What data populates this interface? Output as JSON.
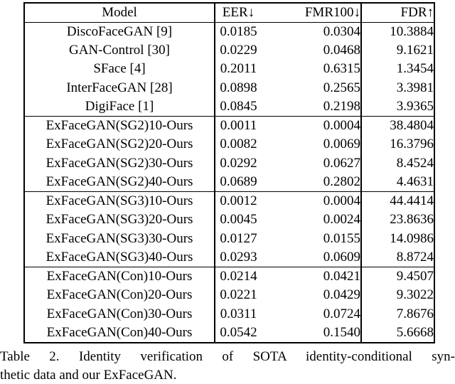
{
  "table": {
    "headers": {
      "model": "Model",
      "eer": "EER↓",
      "fmr100": "FMR100↓",
      "fdr": "FDR↑"
    },
    "rows": [
      {
        "model": "DiscoFaceGAN [9]",
        "eer": "0.0185",
        "fmr100": "0.0304",
        "fdr": "10.3884"
      },
      {
        "model": "GAN-Control [30]",
        "eer": "0.0229",
        "fmr100": "0.0468",
        "fdr": "9.1621"
      },
      {
        "model": "SFace [4]",
        "eer": "0.2011",
        "fmr100": "0.6315",
        "fdr": "1.3454"
      },
      {
        "model": "InterFaceGAN [28]",
        "eer": "0.0898",
        "fmr100": "0.2565",
        "fdr": "3.3981"
      },
      {
        "model": "DigiFace [1]",
        "eer": "0.0845",
        "fmr100": "0.2198",
        "fdr": "3.9365"
      },
      {
        "model": "ExFaceGAN(SG2)10-Ours",
        "eer": "0.0011",
        "fmr100": "0.0004",
        "fdr": "38.4804",
        "group_start": true
      },
      {
        "model": "ExFaceGAN(SG2)20-Ours",
        "eer": "0.0082",
        "fmr100": "0.0069",
        "fdr": "16.3796"
      },
      {
        "model": "ExFaceGAN(SG2)30-Ours",
        "eer": "0.0292",
        "fmr100": "0.0627",
        "fdr": "8.4524"
      },
      {
        "model": "ExFaceGAN(SG2)40-Ours",
        "eer": "0.0689",
        "fmr100": "0.2802",
        "fdr": "4.4631"
      },
      {
        "model": "ExFaceGAN(SG3)10-Ours",
        "eer": "0.0012",
        "fmr100": "0.0004",
        "fdr": "44.4414",
        "group_start": true
      },
      {
        "model": "ExFaceGAN(SG3)20-Ours",
        "eer": "0.0045",
        "fmr100": "0.0024",
        "fdr": "23.8636"
      },
      {
        "model": "ExFaceGAN(SG3)30-Ours",
        "eer": "0.0127",
        "fmr100": "0.0155",
        "fdr": "14.0986"
      },
      {
        "model": "ExFaceGAN(SG3)40-Ours",
        "eer": "0.0293",
        "fmr100": "0.0609",
        "fdr": "8.8724"
      },
      {
        "model": "ExFaceGAN(Con)10-Ours",
        "eer": "0.0214",
        "fmr100": "0.0421",
        "fdr": "9.4507",
        "group_start": true
      },
      {
        "model": "ExFaceGAN(Con)20-Ours",
        "eer": "0.0221",
        "fmr100": "0.0429",
        "fdr": "9.3022"
      },
      {
        "model": "ExFaceGAN(Con)30-Ours",
        "eer": "0.0311",
        "fmr100": "0.0724",
        "fdr": "7.8676"
      },
      {
        "model": "ExFaceGAN(Con)40-Ours",
        "eer": "0.0542",
        "fmr100": "0.1540",
        "fdr": "5.6668"
      }
    ]
  },
  "caption": {
    "line1": "Table 2. Identity verification of SOTA identity-conditional syn-",
    "line2": "thetic data and our ExFaceGAN."
  }
}
